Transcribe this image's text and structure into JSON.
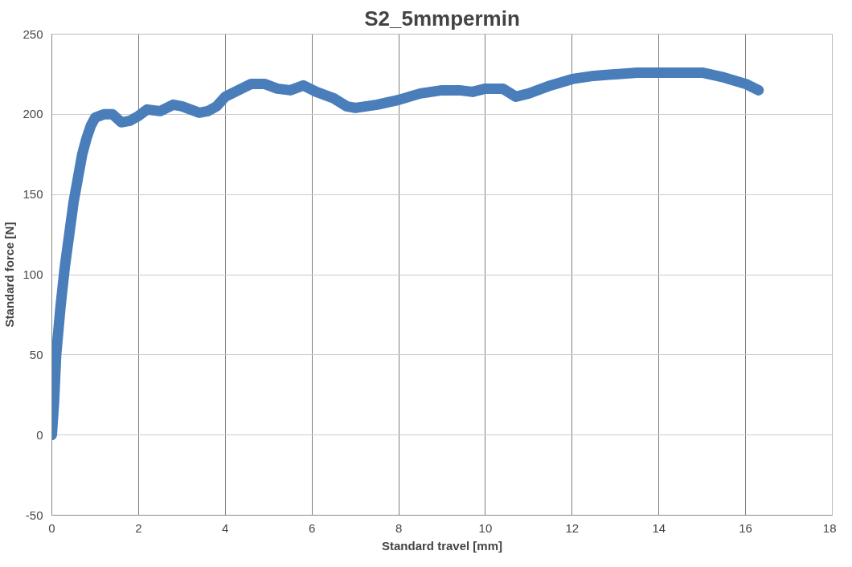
{
  "chart_data": {
    "type": "line",
    "title": "S2_5mmpermin",
    "xlabel": "Standard travel [mm]",
    "ylabel": "Standard force [N]",
    "xlim": [
      0,
      18
    ],
    "xticks": [
      0,
      2,
      4,
      6,
      8,
      10,
      12,
      14,
      16,
      18
    ],
    "ylim": [
      -50,
      250
    ],
    "yticks": [
      -50,
      0,
      50,
      100,
      150,
      200,
      250
    ],
    "grid": true,
    "line_style": "solid",
    "series": [
      {
        "color": "#4a7ebb",
        "x": [
          0,
          0.05,
          0.1,
          0.2,
          0.3,
          0.4,
          0.5,
          0.6,
          0.7,
          0.8,
          0.9,
          1.0,
          1.2,
          1.4,
          1.6,
          1.8,
          2.0,
          2.2,
          2.5,
          2.8,
          3.0,
          3.2,
          3.4,
          3.6,
          3.8,
          4.0,
          4.3,
          4.6,
          4.9,
          5.2,
          5.5,
          5.8,
          6.1,
          6.5,
          6.8,
          7.0,
          7.5,
          8.0,
          8.5,
          9.0,
          9.4,
          9.7,
          10.0,
          10.4,
          10.7,
          11.0,
          11.5,
          12.0,
          12.5,
          13.0,
          13.5,
          14.0,
          14.5,
          15.0,
          15.5,
          16.0,
          16.3
        ],
        "values": [
          0,
          20,
          50,
          80,
          105,
          125,
          145,
          160,
          175,
          185,
          193,
          198,
          200,
          200,
          195,
          196,
          199,
          203,
          202,
          206,
          205,
          203,
          201,
          202,
          205,
          211,
          215,
          219,
          219,
          216,
          215,
          218,
          214,
          210,
          205,
          204,
          206,
          209,
          213,
          215,
          215,
          214,
          216,
          216,
          211,
          213,
          218,
          222,
          224,
          225,
          226,
          226,
          226,
          226,
          223,
          219,
          215
        ]
      }
    ]
  }
}
